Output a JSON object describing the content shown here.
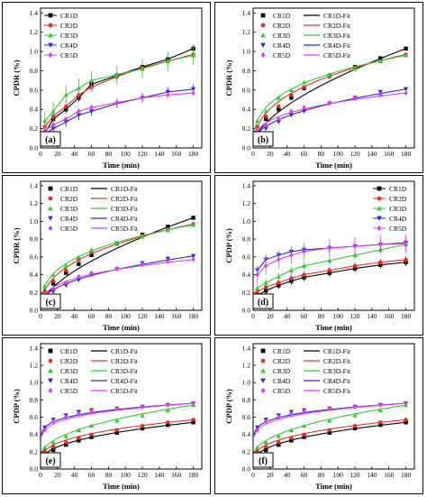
{
  "figure": {
    "background": "#ffffff"
  },
  "series_styles": {
    "CR1D": {
      "color": "#000000",
      "marker": "square"
    },
    "CR2D": {
      "color": "#e8302a",
      "marker": "circle"
    },
    "CR3D": {
      "color": "#33cc33",
      "marker": "triangle-up"
    },
    "CR4D": {
      "color": "#2a2ad8",
      "marker": "triangle-down"
    },
    "CR5D": {
      "color": "#e23be8",
      "marker": "diamond"
    }
  },
  "chart_data": [
    {
      "panel": "(a)",
      "type": "line",
      "xlabel": "Time (min)",
      "ylabel": "CPDR (%)",
      "xlim": [
        0,
        190
      ],
      "ylim": [
        0,
        1.45
      ],
      "xticks": [
        "0",
        "20",
        "40",
        "60",
        "80",
        "100",
        "120",
        "140",
        "160",
        "180"
      ],
      "yticks": [
        "0.0",
        "0.2",
        "0.4",
        "0.6",
        "0.8",
        "1.0",
        "1.2",
        "1.4"
      ],
      "legend": [
        "CR1D",
        "CR2D",
        "CR3D",
        "CR4D",
        "CR5D"
      ],
      "legend_position": "top-left",
      "x": [
        5,
        15,
        30,
        45,
        60,
        90,
        120,
        150,
        180
      ],
      "series": [
        {
          "name": "CR1D",
          "values": [
            0.15,
            0.3,
            0.4,
            0.52,
            0.66,
            0.75,
            0.84,
            0.92,
            1.03
          ],
          "mode": "line-markers",
          "error": 0.04
        },
        {
          "name": "CR2D",
          "values": [
            0.22,
            0.33,
            0.43,
            0.55,
            0.63,
            0.74,
            0.83,
            0.9,
            0.97
          ],
          "mode": "line-markers",
          "error": 0.04
        },
        {
          "name": "CR3D",
          "values": [
            0.28,
            0.38,
            0.55,
            0.62,
            0.7,
            0.76,
            0.82,
            0.9,
            0.96
          ],
          "mode": "line-markers",
          "error": 0.1
        },
        {
          "name": "CR4D",
          "values": [
            0.15,
            0.2,
            0.27,
            0.34,
            0.38,
            0.46,
            0.52,
            0.58,
            0.61
          ],
          "mode": "line-markers",
          "error": 0.05
        },
        {
          "name": "CR5D",
          "values": [
            0.18,
            0.24,
            0.3,
            0.38,
            0.42,
            0.47,
            0.52,
            0.55,
            0.57
          ],
          "mode": "line-markers",
          "error": 0.03
        }
      ]
    },
    {
      "panel": "(b)",
      "type": "line",
      "xlabel": "Time (min)",
      "ylabel": "CPDR (%)",
      "xlim": [
        0,
        190
      ],
      "ylim": [
        0,
        1.45
      ],
      "xticks": [
        "0",
        "20",
        "40",
        "60",
        "80",
        "100",
        "120",
        "140",
        "160",
        "180"
      ],
      "yticks": [
        "0.0",
        "0.2",
        "0.4",
        "0.6",
        "0.8",
        "1.0",
        "1.2",
        "1.4"
      ],
      "legend": [
        "CR1D",
        "CR1D-Fit",
        "CR2D",
        "CR2D-Fit",
        "CR3D",
        "CR3D-Fit",
        "CR4D",
        "CR4D-Fit",
        "CR5D",
        "CR5D-Fit"
      ],
      "legend_position": "top-left",
      "x": [
        5,
        15,
        30,
        45,
        60,
        90,
        120,
        150,
        180
      ],
      "series": [
        {
          "name": "CR1D",
          "values": [
            0.15,
            0.3,
            0.4,
            0.52,
            0.62,
            0.75,
            0.84,
            0.93,
            1.03
          ],
          "fit": [
            0.6,
            0.05
          ],
          "mode": "markers+fit"
        },
        {
          "name": "CR2D",
          "values": [
            0.22,
            0.33,
            0.43,
            0.55,
            0.63,
            0.74,
            0.83,
            0.9,
            0.97
          ],
          "fit": [
            0.35,
            0.04
          ],
          "mode": "markers+fit"
        },
        {
          "name": "CR3D",
          "values": [
            0.28,
            0.38,
            0.52,
            0.6,
            0.68,
            0.76,
            0.82,
            0.9,
            0.96
          ],
          "fit": [
            0.3,
            0.05
          ],
          "mode": "markers+fit"
        },
        {
          "name": "CR4D",
          "values": [
            0.15,
            0.2,
            0.27,
            0.34,
            0.38,
            0.46,
            0.52,
            0.58,
            0.61
          ],
          "fit": [
            0.45,
            0.04
          ],
          "mode": "markers+fit"
        },
        {
          "name": "CR5D",
          "values": [
            0.18,
            0.24,
            0.3,
            0.38,
            0.42,
            0.47,
            0.52,
            0.55,
            0.57
          ],
          "fit": [
            0.3,
            0.03
          ],
          "mode": "markers+fit"
        }
      ]
    },
    {
      "panel": "(c)",
      "type": "line",
      "xlabel": "Time (min)",
      "ylabel": "CPDR (%)",
      "xlim": [
        0,
        190
      ],
      "ylim": [
        0,
        1.45
      ],
      "xticks": [
        "0",
        "20",
        "40",
        "60",
        "80",
        "100",
        "120",
        "140",
        "160",
        "180"
      ],
      "yticks": [
        "0.0",
        "0.2",
        "0.4",
        "0.6",
        "0.8",
        "1.0",
        "1.2",
        "1.4"
      ],
      "legend": [
        "CR1D",
        "CR1D-Fit",
        "CR2D",
        "CR2D-Fit",
        "CR3D",
        "CR3D-Fit",
        "CR4D",
        "CR4D-Fit",
        "CR5D",
        "CR5D-Fit"
      ],
      "legend_position": "top-left",
      "x": [
        5,
        15,
        30,
        45,
        60,
        90,
        120,
        150,
        180
      ],
      "series": [
        {
          "name": "CR1D",
          "values": [
            0.15,
            0.3,
            0.42,
            0.52,
            0.62,
            0.75,
            0.85,
            0.94,
            1.04
          ],
          "fit": [
            0.6,
            0.05
          ],
          "mode": "markers+fit"
        },
        {
          "name": "CR2D",
          "values": [
            0.22,
            0.33,
            0.45,
            0.57,
            0.66,
            0.75,
            0.84,
            0.91,
            0.97
          ],
          "fit": [
            0.35,
            0.04
          ],
          "mode": "markers+fit"
        },
        {
          "name": "CR3D",
          "values": [
            0.27,
            0.4,
            0.5,
            0.6,
            0.68,
            0.76,
            0.83,
            0.9,
            0.96
          ],
          "fit": [
            0.3,
            0.05
          ],
          "mode": "markers+fit"
        },
        {
          "name": "CR4D",
          "values": [
            0.16,
            0.21,
            0.28,
            0.34,
            0.4,
            0.46,
            0.53,
            0.58,
            0.61
          ],
          "fit": [
            0.45,
            0.04
          ],
          "mode": "markers+fit"
        },
        {
          "name": "CR5D",
          "values": [
            0.18,
            0.24,
            0.31,
            0.38,
            0.42,
            0.47,
            0.52,
            0.55,
            0.57
          ],
          "fit": [
            0.3,
            0.03
          ],
          "mode": "markers+fit"
        }
      ]
    },
    {
      "panel": "(d)",
      "type": "line",
      "xlabel": "Time (min)",
      "ylabel": "CPDP (%)",
      "xlim": [
        0,
        190
      ],
      "ylim": [
        0,
        1.45
      ],
      "xticks": [
        "0",
        "20",
        "40",
        "60",
        "80",
        "100",
        "120",
        "140",
        "160",
        "180"
      ],
      "yticks": [
        "0.0",
        "0.2",
        "0.4",
        "0.6",
        "0.8",
        "1.0",
        "1.2",
        "1.4"
      ],
      "legend": [
        "CR1D",
        "CR2D",
        "CR3D",
        "CR4D",
        "CR5D"
      ],
      "legend_position": "top-right",
      "x": [
        5,
        15,
        30,
        45,
        60,
        90,
        120,
        150,
        180
      ],
      "series": [
        {
          "name": "CR1D",
          "values": [
            0.17,
            0.22,
            0.28,
            0.33,
            0.37,
            0.42,
            0.47,
            0.51,
            0.54
          ],
          "mode": "line-markers",
          "error": 0.04
        },
        {
          "name": "CR2D",
          "values": [
            0.21,
            0.26,
            0.31,
            0.36,
            0.4,
            0.45,
            0.5,
            0.54,
            0.57
          ],
          "mode": "line-markers",
          "error": 0.04
        },
        {
          "name": "CR3D",
          "values": [
            0.25,
            0.31,
            0.38,
            0.45,
            0.5,
            0.56,
            0.62,
            0.68,
            0.74
          ],
          "mode": "line-markers",
          "error": 0.04
        },
        {
          "name": "CR4D",
          "values": [
            0.45,
            0.57,
            0.62,
            0.66,
            0.68,
            0.7,
            0.72,
            0.74,
            0.76
          ],
          "mode": "line-markers",
          "error": 0.05
        },
        {
          "name": "CR5D",
          "values": [
            0.4,
            0.5,
            0.57,
            0.62,
            0.66,
            0.7,
            0.72,
            0.74,
            0.75
          ],
          "mode": "line-markers",
          "error": 0.1
        }
      ]
    },
    {
      "panel": "(e)",
      "type": "line",
      "xlabel": "Time (min)",
      "ylabel": "CPDP (%)",
      "xlim": [
        0,
        190
      ],
      "ylim": [
        0,
        1.45
      ],
      "xticks": [
        "0",
        "20",
        "40",
        "60",
        "80",
        "100",
        "120",
        "140",
        "160",
        "180"
      ],
      "yticks": [
        "0.0",
        "0.2",
        "0.4",
        "0.6",
        "0.8",
        "1.0",
        "1.2",
        "1.4"
      ],
      "legend": [
        "CR1D",
        "CR1D-Fit",
        "CR2D",
        "CR2D-Fit",
        "CR3D",
        "CR3D-Fit",
        "CR4D",
        "CR4D-Fit",
        "CR5D",
        "CR5D-Fit"
      ],
      "legend_position": "top-left",
      "x": [
        5,
        15,
        30,
        45,
        60,
        90,
        120,
        150,
        180
      ],
      "series": [
        {
          "name": "CR1D",
          "values": [
            0.17,
            0.22,
            0.28,
            0.33,
            0.37,
            0.42,
            0.47,
            0.51,
            0.54
          ],
          "fit": [
            0.4,
            0.03
          ],
          "mode": "markers+fit"
        },
        {
          "name": "CR2D",
          "values": [
            0.21,
            0.26,
            0.31,
            0.36,
            0.4,
            0.45,
            0.5,
            0.54,
            0.57
          ],
          "fit": [
            0.35,
            0.05
          ],
          "mode": "markers+fit"
        },
        {
          "name": "CR3D",
          "values": [
            0.25,
            0.31,
            0.38,
            0.45,
            0.5,
            0.56,
            0.62,
            0.68,
            0.74
          ],
          "fit": [
            0.45,
            0.05
          ],
          "mode": "markers+fit"
        },
        {
          "name": "CR4D",
          "values": [
            0.48,
            0.57,
            0.62,
            0.66,
            0.68,
            0.7,
            0.72,
            0.74,
            0.76
          ],
          "fit": [
            0.2,
            0.03
          ],
          "mode": "markers+fit"
        },
        {
          "name": "CR5D",
          "values": [
            0.45,
            0.55,
            0.6,
            0.64,
            0.67,
            0.7,
            0.72,
            0.74,
            0.76
          ],
          "fit": [
            0.22,
            0.03
          ],
          "mode": "markers+fit"
        }
      ]
    },
    {
      "panel": "(f)",
      "type": "line",
      "xlabel": "Time (min)",
      "ylabel": "CPDP (%)",
      "xlim": [
        0,
        190
      ],
      "ylim": [
        0,
        1.45
      ],
      "xticks": [
        "0",
        "20",
        "40",
        "60",
        "80",
        "100",
        "120",
        "140",
        "160",
        "180"
      ],
      "yticks": [
        "0.0",
        "0.2",
        "0.4",
        "0.6",
        "0.8",
        "1.0",
        "1.2",
        "1.4"
      ],
      "legend": [
        "CR1D",
        "CR1D-Fit",
        "CR2D",
        "CR2D-Fit",
        "CR3D",
        "CR3D-Fit",
        "CR4D",
        "CR4D-Fit",
        "CR5D",
        "CR5D-Fit"
      ],
      "legend_position": "top-left",
      "x": [
        5,
        15,
        30,
        45,
        60,
        90,
        120,
        150,
        180
      ],
      "series": [
        {
          "name": "CR1D",
          "values": [
            0.17,
            0.22,
            0.28,
            0.33,
            0.37,
            0.42,
            0.47,
            0.51,
            0.54
          ],
          "fit": [
            0.4,
            0.03
          ],
          "mode": "markers+fit"
        },
        {
          "name": "CR2D",
          "values": [
            0.21,
            0.26,
            0.31,
            0.36,
            0.4,
            0.45,
            0.5,
            0.54,
            0.57
          ],
          "fit": [
            0.35,
            0.05
          ],
          "mode": "markers+fit"
        },
        {
          "name": "CR3D",
          "values": [
            0.25,
            0.31,
            0.38,
            0.45,
            0.5,
            0.56,
            0.62,
            0.68,
            0.74
          ],
          "fit": [
            0.45,
            0.05
          ],
          "mode": "markers+fit"
        },
        {
          "name": "CR4D",
          "values": [
            0.48,
            0.57,
            0.62,
            0.66,
            0.68,
            0.7,
            0.72,
            0.74,
            0.76
          ],
          "fit": [
            0.2,
            0.03
          ],
          "mode": "markers+fit"
        },
        {
          "name": "CR5D",
          "values": [
            0.45,
            0.55,
            0.6,
            0.64,
            0.67,
            0.7,
            0.72,
            0.74,
            0.76
          ],
          "fit": [
            0.22,
            0.03
          ],
          "mode": "markers+fit"
        }
      ]
    }
  ]
}
